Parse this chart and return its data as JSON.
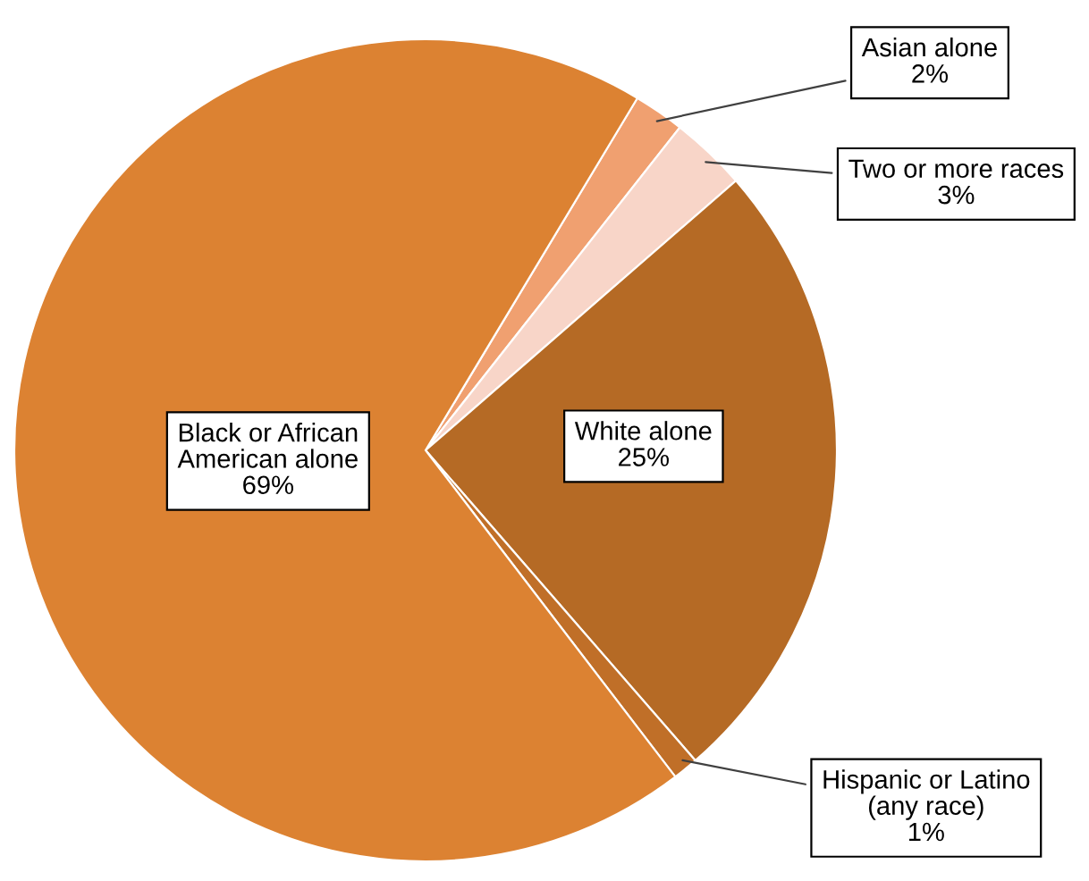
{
  "chart_data": {
    "type": "pie",
    "categories": [
      "Asian alone",
      "Two or more races",
      "White alone",
      "Hispanic or Latino\n(any race)",
      "Black or African\nAmerican alone"
    ],
    "values": [
      2,
      3,
      25,
      1,
      69
    ],
    "value_labels": [
      "2%",
      "3%",
      "25%",
      "1%",
      "69%"
    ],
    "colors": [
      "#f0a070",
      "#f8d5c8",
      "#b56a25",
      "#c06f28",
      "#dc8232"
    ]
  }
}
